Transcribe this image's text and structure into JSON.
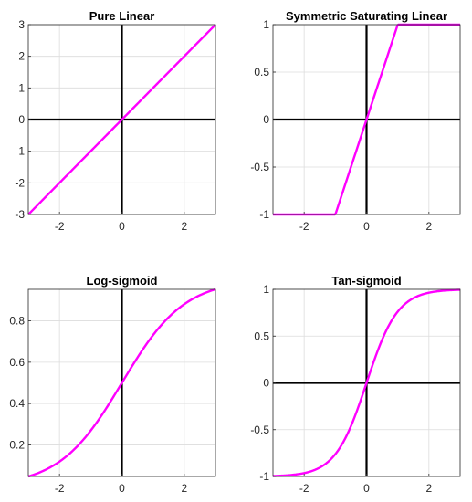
{
  "colors": {
    "curve": "#ff00ff",
    "axis_cross": "#000000",
    "grid": "#dcdcdc",
    "frame": "#262626",
    "background": "#ffffff"
  },
  "chart_data": [
    {
      "type": "line",
      "title": "Pure Linear",
      "xlabel": "",
      "ylabel": "",
      "xlim": [
        -3,
        3
      ],
      "ylim": [
        -3,
        3
      ],
      "grid": true,
      "xticks": [
        -2,
        0,
        2
      ],
      "xtick_labels": [
        "-2",
        "0",
        "2"
      ],
      "yticks": [
        -3,
        -2,
        -1,
        0,
        1,
        2,
        3
      ],
      "ytick_labels": [
        "-3",
        "-2",
        "-1",
        "0",
        "1",
        "2",
        "3"
      ],
      "series": [
        {
          "function": "purelin",
          "x": [
            -3,
            3
          ],
          "y": [
            -3,
            3
          ]
        }
      ]
    },
    {
      "type": "line",
      "title": "Symmetric Saturating Linear",
      "xlabel": "",
      "ylabel": "",
      "xlim": [
        -3,
        3
      ],
      "ylim": [
        -1,
        1
      ],
      "grid": true,
      "xticks": [
        -2,
        0,
        2
      ],
      "xtick_labels": [
        "-2",
        "0",
        "2"
      ],
      "yticks": [
        -1,
        -0.5,
        0,
        0.5,
        1
      ],
      "ytick_labels": [
        "-1",
        "-0.5",
        "0",
        "0.5",
        "1"
      ],
      "series": [
        {
          "function": "satlins",
          "x": [
            -3,
            -1,
            1,
            3
          ],
          "y": [
            -1,
            -1,
            1,
            1
          ]
        }
      ]
    },
    {
      "type": "line",
      "title": "Log-sigmoid",
      "xlabel": "",
      "ylabel": "",
      "xlim": [
        -3,
        3
      ],
      "ylim": [
        0.0474,
        0.9526
      ],
      "grid": true,
      "xticks": [
        -2,
        0,
        2
      ],
      "xtick_labels": [
        "-2",
        "0",
        "2"
      ],
      "yticks": [
        0.2,
        0.4,
        0.6,
        0.8
      ],
      "ytick_labels": [
        "0.2",
        "0.4",
        "0.6",
        "0.8"
      ],
      "series": [
        {
          "function": "logsig",
          "x": [
            -3,
            -2.5,
            -2,
            -1.5,
            -1,
            -0.5,
            0,
            0.5,
            1,
            1.5,
            2,
            2.5,
            3
          ],
          "y": [
            0.0474,
            0.0759,
            0.1192,
            0.1824,
            0.2689,
            0.3775,
            0.5,
            0.6225,
            0.7311,
            0.8176,
            0.8808,
            0.9241,
            0.9526
          ]
        }
      ]
    },
    {
      "type": "line",
      "title": "Tan-sigmoid",
      "xlabel": "",
      "ylabel": "",
      "xlim": [
        -3,
        3
      ],
      "ylim": [
        -1,
        1
      ],
      "grid": true,
      "xticks": [
        -2,
        0,
        2
      ],
      "xtick_labels": [
        "-2",
        "0",
        "2"
      ],
      "yticks": [
        -1,
        -0.5,
        0,
        0.5,
        1
      ],
      "ytick_labels": [
        "-1",
        "-0.5",
        "0",
        "0.5",
        "1"
      ],
      "series": [
        {
          "function": "tansig",
          "x": [
            -3,
            -2.5,
            -2,
            -1.5,
            -1,
            -0.5,
            0,
            0.5,
            1,
            1.5,
            2,
            2.5,
            3
          ],
          "y": [
            -0.9951,
            -0.9866,
            -0.964,
            -0.9051,
            -0.7616,
            -0.4621,
            0,
            0.4621,
            0.7616,
            0.9051,
            0.964,
            0.9866,
            0.9951
          ]
        }
      ]
    }
  ]
}
